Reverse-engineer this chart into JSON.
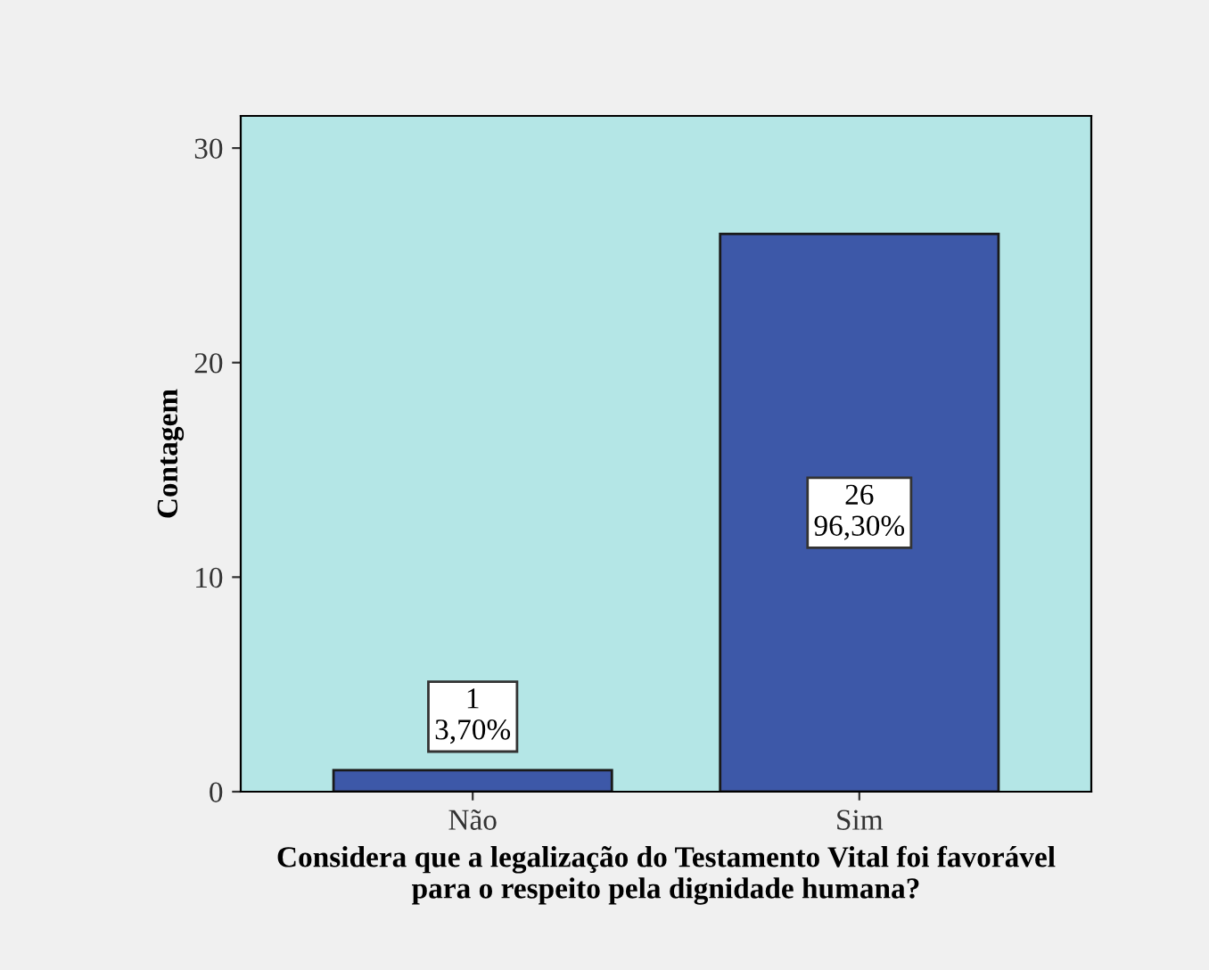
{
  "chart_data": {
    "type": "bar",
    "xlabel": "Considera que a legalização do Testamento Vital foi favorável\npara o respeito pela dignidade humana?",
    "ylabel": "Contagem",
    "categories": [
      "Não",
      "Sim"
    ],
    "values": [
      1,
      26
    ],
    "color": "#3d58a8",
    "value_labels": [
      "1\n3,70%",
      "26\n96,30%"
    ],
    "ylim": [
      0,
      31.5
    ],
    "yticks": [
      0,
      10,
      20,
      30
    ],
    "grid": false,
    "legend": false
  }
}
